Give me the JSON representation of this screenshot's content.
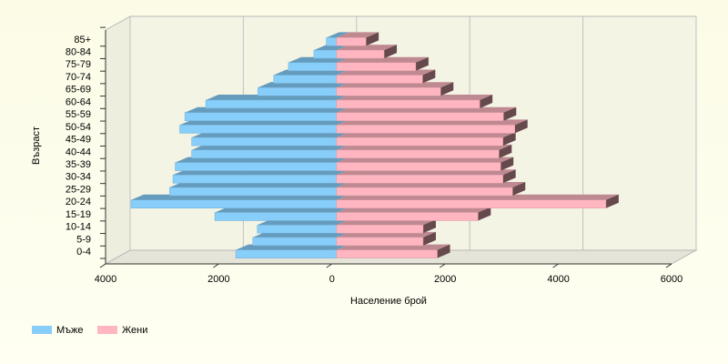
{
  "chart_data": {
    "type": "bar",
    "orientation": "horizontal",
    "stacked": false,
    "xlabel": "Население брой",
    "ylabel": "Възраст",
    "categories": [
      "0-4",
      "5-9",
      "10-14",
      "15-19",
      "20-24",
      "25-29",
      "30-34",
      "35-39",
      "40-44",
      "45-49",
      "50-54",
      "55-59",
      "60-64",
      "65-69",
      "70-74",
      "75-79",
      "80-84",
      "85+"
    ],
    "series": [
      {
        "name": "Мъже",
        "color": "#87cefa",
        "values": [
          -1780,
          -1480,
          -1400,
          -2150,
          -3630,
          -2950,
          -2890,
          -2850,
          -2560,
          -2560,
          -2770,
          -2680,
          -2310,
          -1390,
          -1110,
          -850,
          -400,
          -180
        ]
      },
      {
        "name": "Жени",
        "color": "#ffb6c1",
        "values": [
          1780,
          1530,
          1530,
          2500,
          4760,
          3110,
          2940,
          2900,
          2870,
          2940,
          3150,
          2950,
          2530,
          1840,
          1520,
          1400,
          840,
          520
        ]
      }
    ],
    "xlim": [
      -4000,
      6000
    ],
    "xticks": [
      {
        "value": -4000,
        "label": "4000"
      },
      {
        "value": -2000,
        "label": "2000"
      },
      0,
      2000,
      4000,
      6000
    ],
    "grid": true,
    "legend": "bottom-left"
  }
}
